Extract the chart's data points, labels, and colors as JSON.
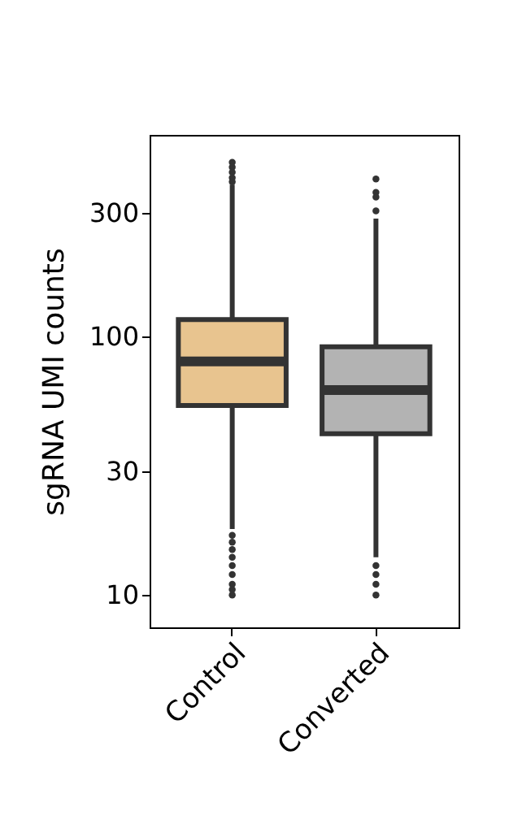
{
  "chart_data": {
    "type": "box",
    "ylabel": "sgRNA UMI counts",
    "categories": [
      "Control",
      "Converted"
    ],
    "colors": [
      "#e8c48f",
      "#b3b3b3"
    ],
    "boxes": [
      {
        "low": 18,
        "q1": 54,
        "median": 80,
        "q3": 116,
        "high": 385,
        "outliers": [
          470,
          450,
          430,
          410,
          395,
          17,
          16,
          15,
          14,
          13,
          12,
          11,
          10.5,
          10
        ]
      },
      {
        "low": 14,
        "q1": 42,
        "median": 62,
        "q3": 91,
        "high": 285,
        "outliers": [
          405,
          360,
          345,
          305,
          13,
          12,
          11,
          10
        ]
      }
    ],
    "log": true,
    "ylim": [
      7.5,
      600
    ],
    "yticks": [
      10,
      30,
      100,
      300
    ],
    "grid": false
  }
}
